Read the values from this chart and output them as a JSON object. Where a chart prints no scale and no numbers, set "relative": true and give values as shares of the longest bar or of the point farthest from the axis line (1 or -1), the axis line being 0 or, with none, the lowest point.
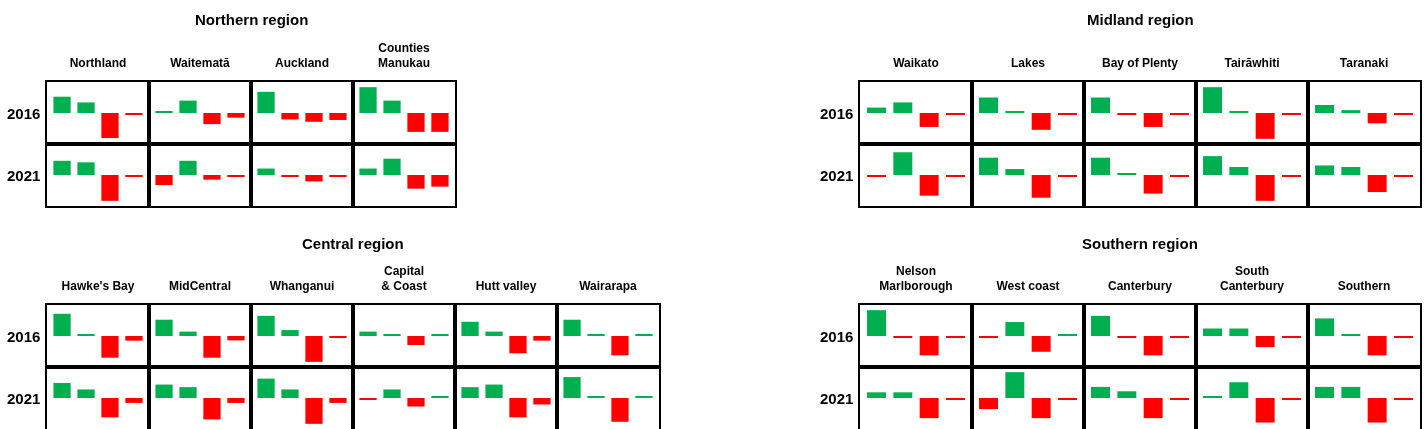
{
  "chart_data": [
    {
      "type": "bar",
      "relative": true,
      "title": "Northern region",
      "ylabel": "2016",
      "categories": [
        "Northland",
        "Waitematā",
        "Auckland",
        "Counties Manukau"
      ],
      "series": [
        {
          "values": [
            0.63,
            0.05,
            0.82,
            1.0
          ],
          "colors": [
            "#00b050",
            "#00b050",
            "#00b050",
            "#00b050"
          ]
        },
        {
          "values": [
            0.41,
            0.48,
            -0.25,
            0.48
          ],
          "colors": [
            "#00b050",
            "#00b050",
            "#ff0000",
            "#00b050"
          ]
        },
        {
          "values": [
            -0.97,
            -0.43,
            -0.34,
            -0.73
          ],
          "colors": [
            "#ff0000",
            "#ff0000",
            "#ff0000",
            "#ff0000"
          ]
        },
        {
          "values": [
            -0.05,
            -0.18,
            -0.27,
            -0.73
          ],
          "colors": [
            "#ff0000",
            "#ff0000",
            "#ff0000",
            "#ff0000"
          ]
        }
      ]
    },
    {
      "type": "bar",
      "relative": true,
      "ylabel": "2021",
      "tick_labels": false,
      "categories": [
        "Northland",
        "Waitematā",
        "Auckland",
        "Counties Manukau"
      ],
      "series": [
        {
          "values": [
            0.55,
            -0.39,
            0.25,
            0.25
          ],
          "colors": [
            "#00b050",
            "#ff0000",
            "#00b050",
            "#00b050"
          ]
        },
        {
          "values": [
            0.49,
            0.55,
            -0.05,
            0.63
          ],
          "colors": [
            "#00b050",
            "#00b050",
            "#ff0000",
            "#00b050"
          ]
        },
        {
          "values": [
            -1.0,
            -0.18,
            -0.25,
            -0.53
          ],
          "colors": [
            "#ff0000",
            "#ff0000",
            "#ff0000",
            "#ff0000"
          ]
        },
        {
          "values": [
            -0.05,
            -0.05,
            -0.05,
            -0.45
          ],
          "colors": [
            "#ff0000",
            "#ff0000",
            "#ff0000",
            "#ff0000"
          ]
        }
      ]
    },
    {
      "type": "bar",
      "relative": true,
      "title": "Midland region",
      "ylabel": "2016",
      "categories": [
        "Waikato",
        "Lakes",
        "Bay of Plenty",
        "Tairāwhiti",
        "Taranaki"
      ],
      "series": [
        {
          "values": [
            0.21,
            0.6,
            0.6,
            1.0,
            0.31
          ],
          "colors": [
            "#00b050",
            "#00b050",
            "#00b050",
            "#00b050",
            "#00b050"
          ]
        },
        {
          "values": [
            0.41,
            0.05,
            -0.05,
            0.07,
            0.11
          ],
          "colors": [
            "#00b050",
            "#00b050",
            "#ff0000",
            "#00b050",
            "#00b050"
          ]
        },
        {
          "values": [
            -0.54,
            -0.65,
            -0.54,
            -1.0,
            -0.4
          ],
          "colors": [
            "#ff0000",
            "#ff0000",
            "#ff0000",
            "#ff0000",
            "#ff0000"
          ]
        },
        {
          "values": [
            -0.05,
            -0.05,
            -0.05,
            -0.05,
            -0.05
          ],
          "colors": [
            "#ff0000",
            "#ff0000",
            "#ff0000",
            "#ff0000",
            "#ff0000"
          ]
        }
      ]
    },
    {
      "type": "bar",
      "relative": true,
      "ylabel": "2021",
      "tick_labels": false,
      "categories": [
        "Waikato",
        "Lakes",
        "Bay of Plenty",
        "Tairāwhiti",
        "Taranaki"
      ],
      "series": [
        {
          "values": [
            -0.05,
            0.67,
            0.67,
            0.73,
            0.37
          ],
          "colors": [
            "#ff0000",
            "#00b050",
            "#00b050",
            "#00b050",
            "#00b050"
          ]
        },
        {
          "values": [
            0.88,
            0.23,
            0.05,
            0.31,
            0.31
          ],
          "colors": [
            "#00b050",
            "#00b050",
            "#00b050",
            "#00b050",
            "#00b050"
          ]
        },
        {
          "values": [
            -0.8,
            -0.88,
            -0.72,
            -1.0,
            -0.66
          ],
          "colors": [
            "#ff0000",
            "#ff0000",
            "#ff0000",
            "#ff0000",
            "#ff0000"
          ]
        },
        {
          "values": [
            -0.05,
            -0.05,
            -0.05,
            -0.05,
            -0.05
          ],
          "colors": [
            "#ff0000",
            "#ff0000",
            "#ff0000",
            "#ff0000",
            "#ff0000"
          ]
        }
      ]
    },
    {
      "type": "bar",
      "relative": true,
      "title": "Central region",
      "ylabel": "2016",
      "categories": [
        "Hawke's Bay",
        "MidCentral",
        "Whanganui",
        "Capital & Coast",
        "Hutt valley",
        "Wairarapa"
      ],
      "series": [
        {
          "values": [
            0.86,
            0.63,
            0.78,
            0.17,
            0.55,
            0.63
          ],
          "colors": [
            "#00b050",
            "#00b050",
            "#00b050",
            "#00b050",
            "#00b050",
            "#00b050"
          ]
        },
        {
          "values": [
            0.05,
            0.17,
            0.23,
            0.05,
            0.17,
            0.05
          ],
          "colors": [
            "#00b050",
            "#00b050",
            "#00b050",
            "#00b050",
            "#00b050",
            "#00b050"
          ]
        },
        {
          "values": [
            -0.84,
            -0.84,
            -1.0,
            -0.35,
            -0.67,
            -0.75
          ],
          "colors": [
            "#ff0000",
            "#ff0000",
            "#ff0000",
            "#ff0000",
            "#ff0000",
            "#ff0000"
          ]
        },
        {
          "values": [
            -0.18,
            -0.17,
            -0.05,
            0.05,
            -0.18,
            0.05
          ],
          "colors": [
            "#ff0000",
            "#ff0000",
            "#ff0000",
            "#00b050",
            "#ff0000",
            "#00b050"
          ]
        }
      ]
    },
    {
      "type": "bar",
      "relative": true,
      "ylabel": "2021",
      "tick_labels": false,
      "categories": [
        "Hawke's Bay",
        "MidCentral",
        "Whanganui",
        "Capital & Coast",
        "Hutt valley",
        "Wairarapa"
      ],
      "series": [
        {
          "values": [
            0.58,
            0.52,
            0.75,
            -0.05,
            0.42,
            0.81
          ],
          "colors": [
            "#00b050",
            "#00b050",
            "#00b050",
            "#ff0000",
            "#00b050",
            "#00b050"
          ]
        },
        {
          "values": [
            0.33,
            0.42,
            0.33,
            0.33,
            0.52,
            0.05
          ],
          "colors": [
            "#00b050",
            "#00b050",
            "#00b050",
            "#00b050",
            "#00b050",
            "#00b050"
          ]
        },
        {
          "values": [
            -0.75,
            -0.83,
            -1.0,
            -0.33,
            -0.75,
            -0.92
          ],
          "colors": [
            "#ff0000",
            "#ff0000",
            "#ff0000",
            "#ff0000",
            "#ff0000",
            "#ff0000"
          ]
        },
        {
          "values": [
            -0.19,
            -0.19,
            -0.19,
            0.05,
            -0.25,
            0.05
          ],
          "colors": [
            "#ff0000",
            "#ff0000",
            "#ff0000",
            "#00b050",
            "#ff0000",
            "#00b050"
          ]
        }
      ]
    },
    {
      "type": "bar",
      "relative": true,
      "title": "Southern region",
      "ylabel": "2016",
      "categories": [
        "Nelson Marlborough",
        "West coast",
        "Canterbury",
        "South Canterbury",
        "Southern"
      ],
      "series": [
        {
          "values": [
            1.0,
            -0.05,
            0.78,
            0.29,
            0.68
          ],
          "colors": [
            "#00b050",
            "#ff0000",
            "#00b050",
            "#00b050",
            "#00b050"
          ]
        },
        {
          "values": [
            -0.05,
            0.54,
            -0.05,
            0.29,
            0.05
          ],
          "colors": [
            "#ff0000",
            "#00b050",
            "#ff0000",
            "#00b050",
            "#00b050"
          ]
        },
        {
          "values": [
            -0.75,
            -0.61,
            -0.75,
            -0.43,
            -0.75
          ],
          "colors": [
            "#ff0000",
            "#ff0000",
            "#ff0000",
            "#ff0000",
            "#ff0000"
          ]
        },
        {
          "values": [
            -0.05,
            0.05,
            -0.05,
            -0.05,
            -0.05
          ],
          "colors": [
            "#ff0000",
            "#00b050",
            "#ff0000",
            "#ff0000",
            "#ff0000"
          ]
        }
      ]
    },
    {
      "type": "bar",
      "relative": true,
      "ylabel": "2021",
      "tick_labels": false,
      "categories": [
        "Nelson Marlborough",
        "West coast",
        "Canterbury",
        "South Canterbury",
        "Southern"
      ],
      "series": [
        {
          "values": [
            0.22,
            -0.43,
            0.43,
            0.05,
            0.43
          ],
          "colors": [
            "#00b050",
            "#ff0000",
            "#00b050",
            "#00b050",
            "#00b050"
          ]
        },
        {
          "values": [
            0.22,
            1.0,
            0.26,
            0.61,
            0.43
          ],
          "colors": [
            "#00b050",
            "#00b050",
            "#00b050",
            "#00b050",
            "#00b050"
          ]
        },
        {
          "values": [
            -0.78,
            -0.78,
            -0.78,
            -0.95,
            -0.95
          ],
          "colors": [
            "#ff0000",
            "#ff0000",
            "#ff0000",
            "#ff0000",
            "#ff0000"
          ]
        },
        {
          "values": [
            -0.05,
            -0.05,
            -0.05,
            -0.05,
            -0.05
          ],
          "colors": [
            "#ff0000",
            "#ff0000",
            "#ff0000",
            "#ff0000",
            "#ff0000"
          ]
        }
      ]
    }
  ]
}
